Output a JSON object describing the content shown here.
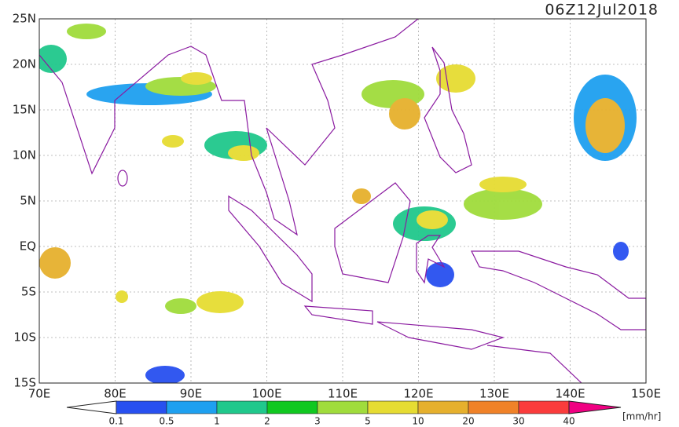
{
  "title": "06Z12Jul2018",
  "lat_labels": [
    "25N",
    "20N",
    "15N",
    "10N",
    "5N",
    "EQ",
    "5S",
    "10S",
    "15S"
  ],
  "lon_labels": [
    "70E",
    "80E",
    "90E",
    "100E",
    "110E",
    "120E",
    "130E",
    "140E",
    "150E"
  ],
  "colorbar": {
    "levels": [
      "0.1",
      "0.5",
      "1",
      "2",
      "3",
      "5",
      "10",
      "20",
      "30",
      "40"
    ],
    "colors": [
      "#2850f0",
      "#1ea0f0",
      "#20c88c",
      "#10c820",
      "#a0dc3c",
      "#e6dc32",
      "#e6b02d",
      "#f08228",
      "#fa3c3c",
      "#f00082"
    ],
    "unit": "[mm/hr]"
  }
}
